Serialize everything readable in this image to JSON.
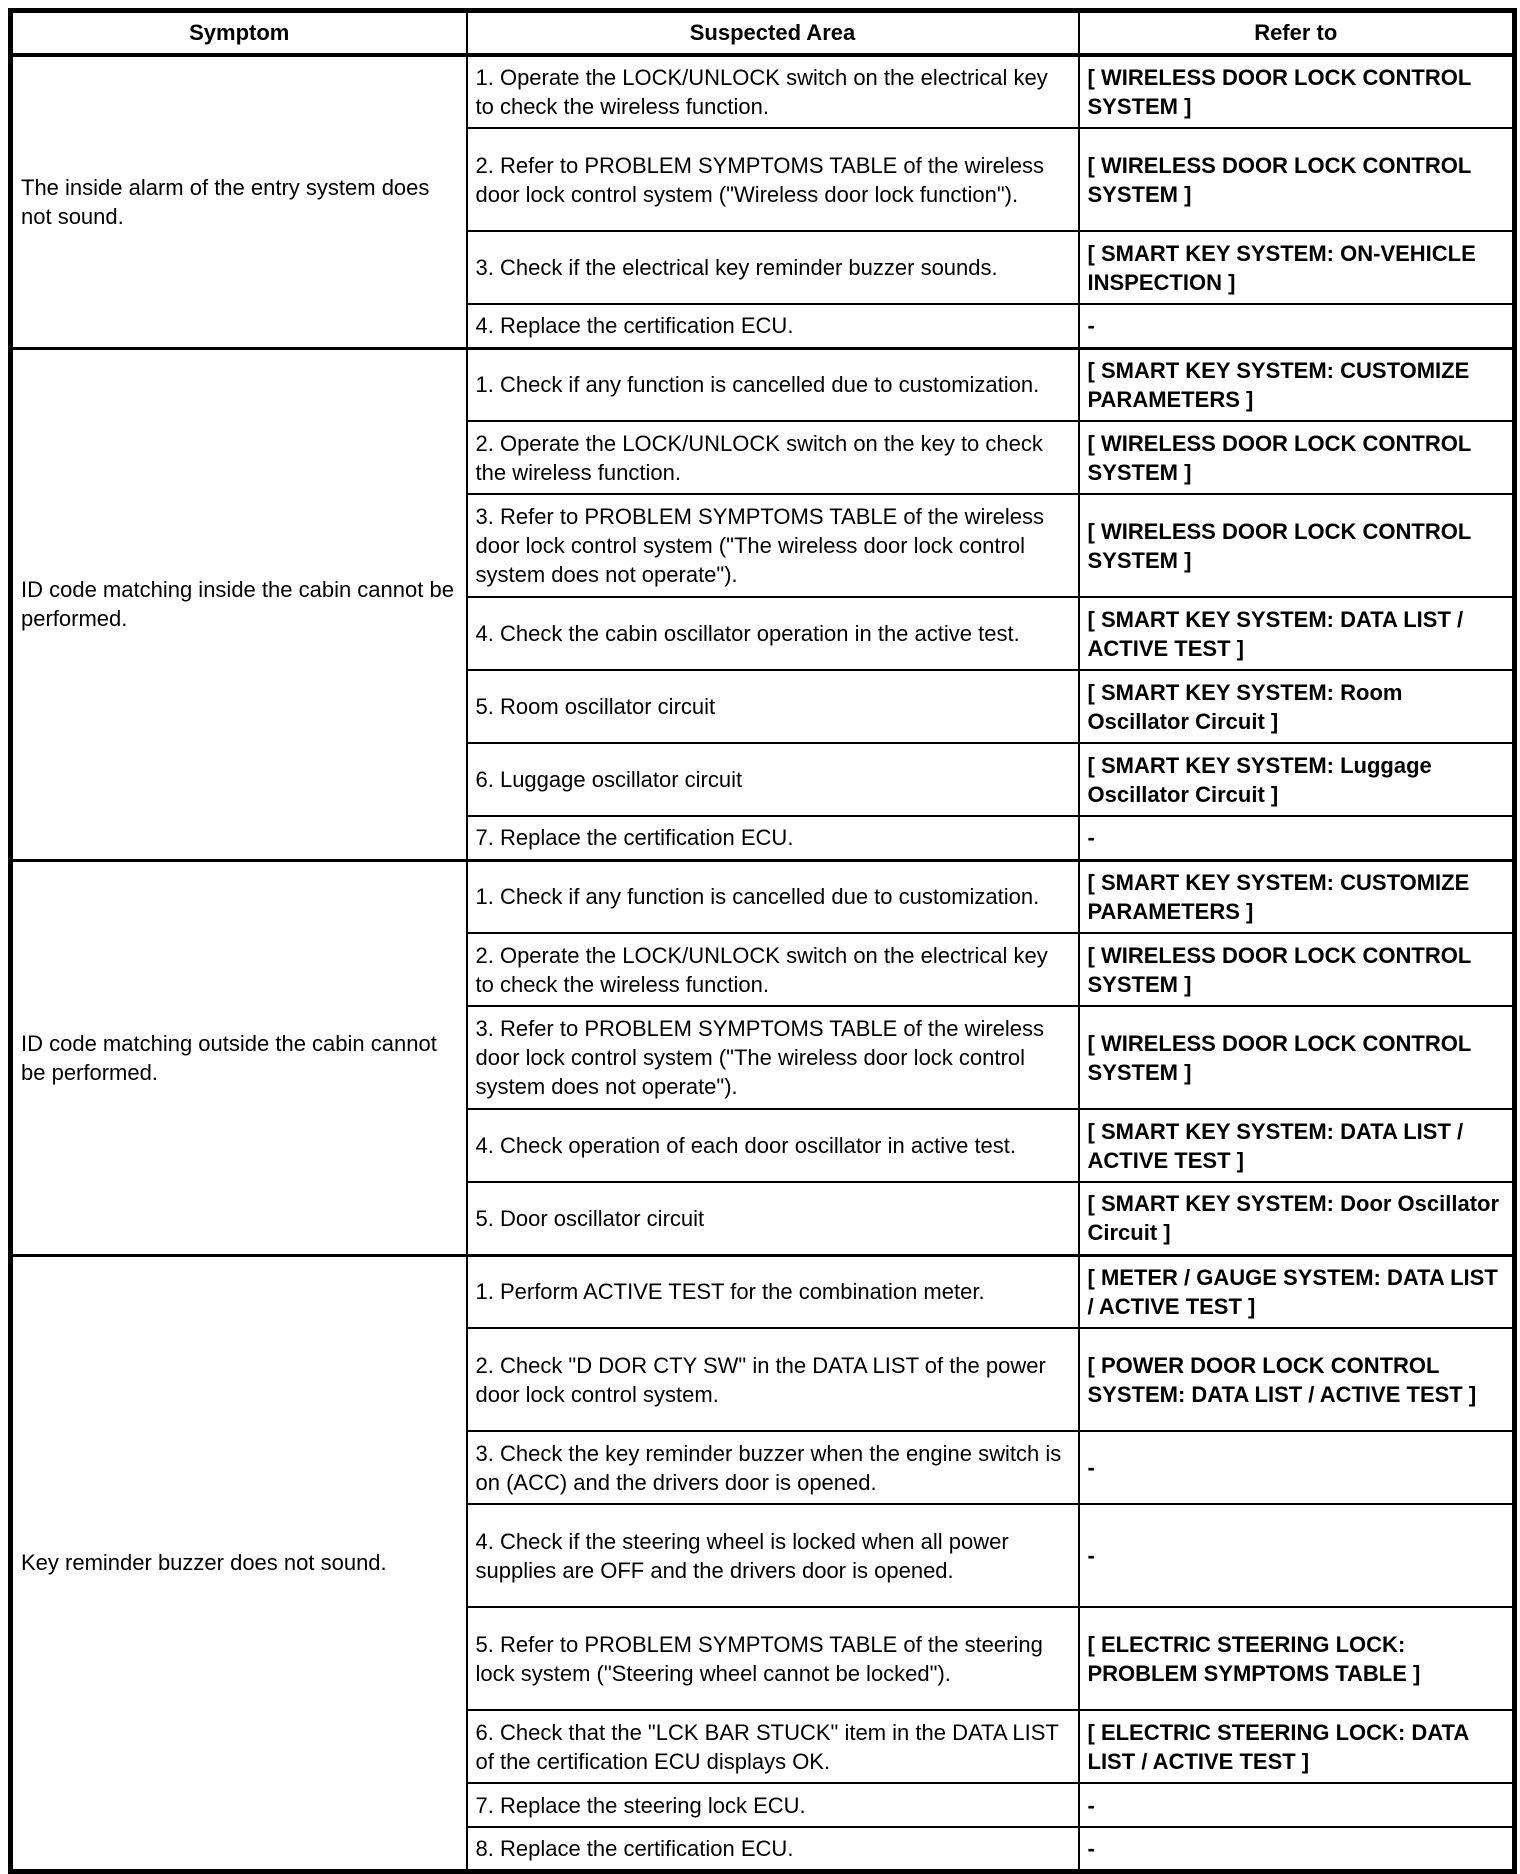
{
  "table": {
    "headers": [
      "Symptom",
      "Suspected Area",
      "Refer to"
    ],
    "groups": [
      {
        "symptom": "The inside alarm of the entry system does not sound.",
        "rows": [
          {
            "area": "1. Operate the LOCK/UNLOCK switch on the electrical key to check the wireless function.",
            "refer": "[ WIRELESS DOOR LOCK CONTROL SYSTEM ]"
          },
          {
            "area": "2. Refer to PROBLEM SYMPTOMS TABLE of the wireless door lock control system (\"Wireless door lock function\").",
            "refer": "[ WIRELESS DOOR LOCK CONTROL SYSTEM ]"
          },
          {
            "area": "3. Check if the electrical key reminder buzzer sounds.",
            "refer": "[ SMART KEY SYSTEM: ON-VEHICLE INSPECTION ]"
          },
          {
            "area": "4. Replace the certification ECU.",
            "refer": "-"
          }
        ]
      },
      {
        "symptom": "ID code matching inside the cabin cannot be performed.",
        "rows": [
          {
            "area": "1. Check if any function is cancelled due to customization.",
            "refer": "[ SMART KEY SYSTEM: CUSTOMIZE PARAMETERS ]"
          },
          {
            "area": "2. Operate the LOCK/UNLOCK switch on the key to check the wireless function.",
            "refer": "[ WIRELESS DOOR LOCK CONTROL SYSTEM ]"
          },
          {
            "area": "3. Refer to PROBLEM SYMPTOMS TABLE of the wireless door lock control system (\"The wireless door lock control system does not operate\").",
            "refer": "[ WIRELESS DOOR LOCK CONTROL SYSTEM ]"
          },
          {
            "area": "4. Check the cabin oscillator operation in the active test.",
            "refer": "[ SMART KEY SYSTEM: DATA LIST / ACTIVE TEST ]"
          },
          {
            "area": "5. Room oscillator circuit",
            "refer": "[ SMART KEY SYSTEM: Room Oscillator Circuit ]"
          },
          {
            "area": "6. Luggage oscillator circuit",
            "refer": "[ SMART KEY SYSTEM: Luggage Oscillator Circuit ]"
          },
          {
            "area": "7. Replace the certification ECU.",
            "refer": "-"
          }
        ]
      },
      {
        "symptom": "ID code matching outside the cabin cannot be performed.",
        "rows": [
          {
            "area": "1. Check if any function is cancelled due to customization.",
            "refer": "[ SMART KEY SYSTEM: CUSTOMIZE PARAMETERS ]"
          },
          {
            "area": "2. Operate the LOCK/UNLOCK switch on the electrical key to check the wireless function.",
            "refer": "[ WIRELESS DOOR LOCK CONTROL SYSTEM ]"
          },
          {
            "area": "3. Refer to PROBLEM SYMPTOMS TABLE of the wireless door lock control system (\"The wireless door lock control system does not operate\").",
            "refer": "[ WIRELESS DOOR LOCK CONTROL SYSTEM ]"
          },
          {
            "area": "4. Check operation of each door oscillator in active test.",
            "refer": "[ SMART KEY SYSTEM: DATA LIST / ACTIVE TEST ]"
          },
          {
            "area": "5. Door oscillator circuit",
            "refer": "[ SMART KEY SYSTEM: Door Oscillator Circuit ]"
          }
        ]
      },
      {
        "symptom": "Key reminder buzzer does not sound.",
        "rows": [
          {
            "area": "1. Perform ACTIVE TEST for the combination meter.",
            "refer": "[ METER / GAUGE SYSTEM: DATA LIST / ACTIVE TEST ]"
          },
          {
            "area": "2. Check \"D DOR CTY SW\" in the DATA LIST of the power door lock control system.",
            "refer": "[ POWER DOOR LOCK CONTROL SYSTEM: DATA LIST / ACTIVE TEST ]"
          },
          {
            "area": "3. Check the key reminder buzzer when the engine switch is on (ACC) and the drivers door is opened.",
            "refer": "-"
          },
          {
            "area": "4. Check if the steering wheel is locked when all power supplies are OFF and the drivers door is opened.",
            "refer": "-"
          },
          {
            "area": "5. Refer to PROBLEM SYMPTOMS TABLE of the steering lock system (\"Steering wheel cannot be locked\").",
            "refer": "[ ELECTRIC STEERING LOCK: PROBLEM SYMPTOMS TABLE ]"
          },
          {
            "area": "6. Check that the \"LCK BAR STUCK\" item in the DATA LIST of the certification ECU displays OK.",
            "refer": "[ ELECTRIC STEERING LOCK: DATA LIST / ACTIVE TEST ]"
          },
          {
            "area": "7. Replace the steering lock ECU.",
            "refer": "-"
          },
          {
            "area": "8. Replace the certification ECU.",
            "refer": "-"
          }
        ]
      }
    ]
  }
}
